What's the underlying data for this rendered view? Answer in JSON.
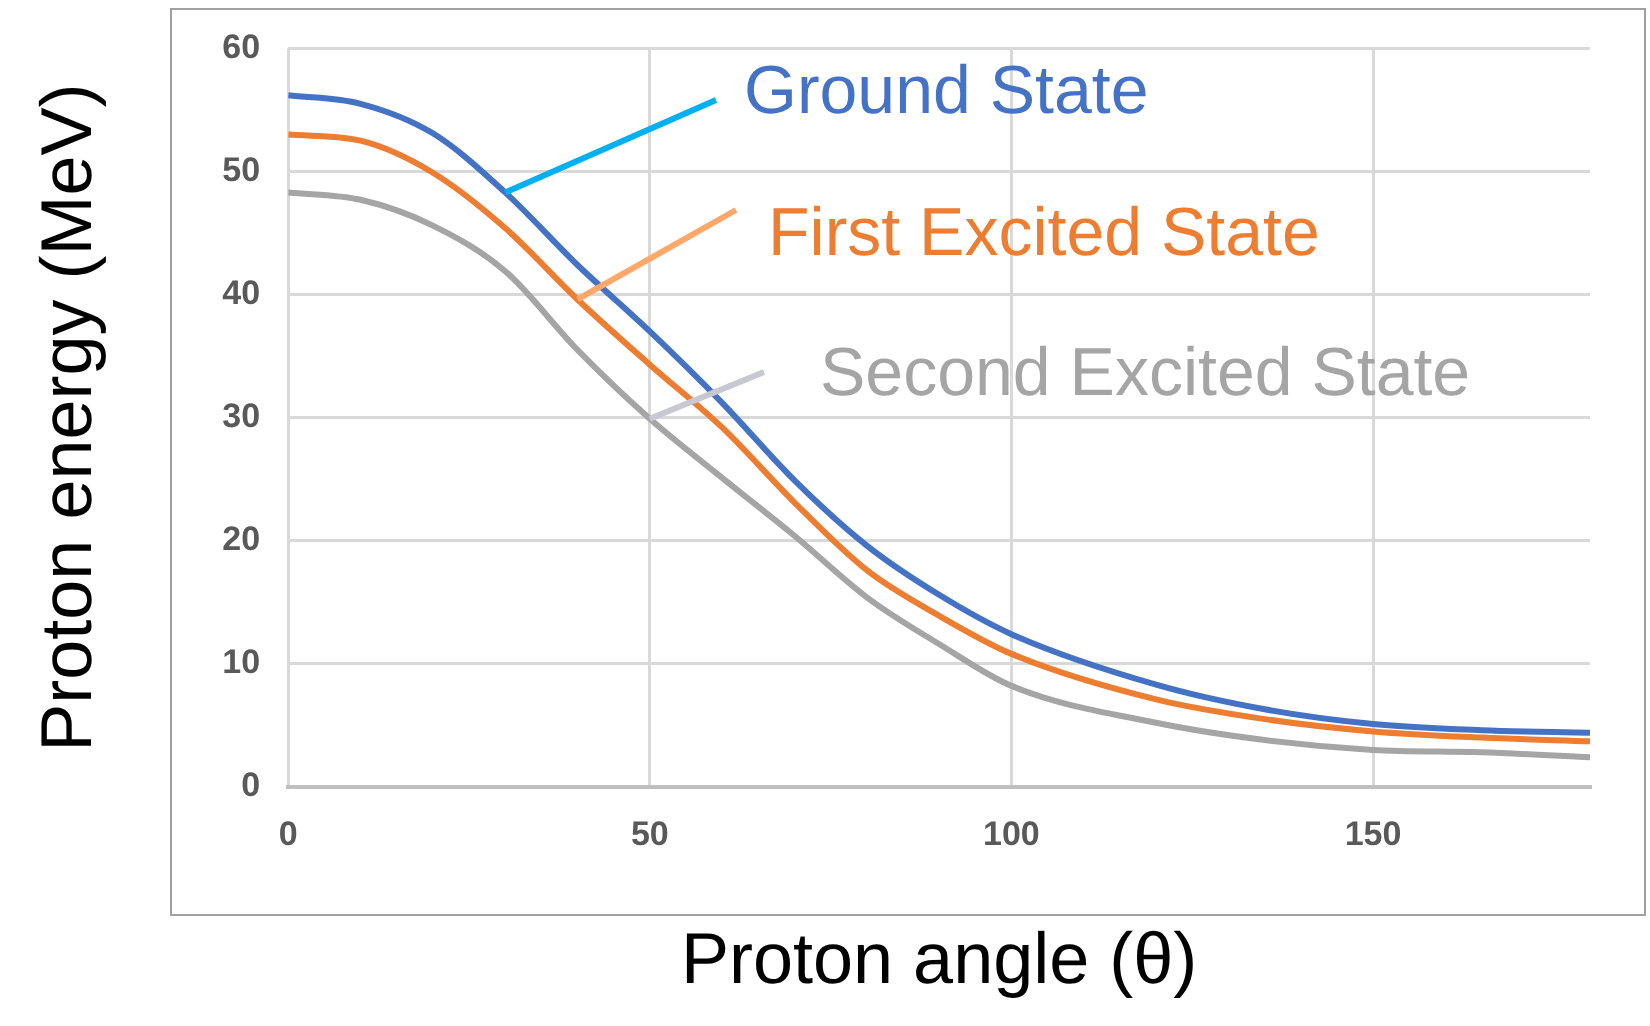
{
  "chart_data": {
    "type": "line",
    "xlabel": "Proton angle (θ)",
    "ylabel": "Proton energy (MeV)",
    "x": [
      0,
      10,
      20,
      30,
      40,
      50,
      60,
      70,
      80,
      90,
      100,
      120,
      135,
      150,
      165,
      180
    ],
    "series": [
      {
        "name": "Ground State",
        "color": "#4472c4",
        "values": [
          56.2,
          55.5,
          53.1,
          48.3,
          42.4,
          37.0,
          31.2,
          24.9,
          19.6,
          15.6,
          12.4,
          8.3,
          6.3,
          5.1,
          4.6,
          4.4
        ]
      },
      {
        "name": "First Excited State",
        "color": "#ed7d31",
        "values": [
          53.0,
          52.5,
          49.9,
          45.4,
          39.6,
          34.3,
          29.2,
          23.1,
          17.6,
          13.9,
          10.8,
          7.1,
          5.5,
          4.5,
          4.0,
          3.7
        ]
      },
      {
        "name": "Second Excited State",
        "color": "#a5a5a5",
        "values": [
          48.3,
          47.7,
          45.6,
          41.9,
          35.5,
          29.9,
          25.1,
          20.4,
          15.4,
          11.6,
          8.2,
          5.2,
          3.8,
          3.0,
          2.8,
          2.4
        ]
      }
    ],
    "xlim": [
      0,
      180
    ],
    "xticks": [
      0,
      50,
      100,
      150
    ],
    "ylim": [
      0,
      60
    ],
    "yticks": [
      0,
      10,
      20,
      30,
      40,
      50,
      60
    ],
    "grid": true,
    "legend": false,
    "marker": "none",
    "line_style": "solid"
  }
}
